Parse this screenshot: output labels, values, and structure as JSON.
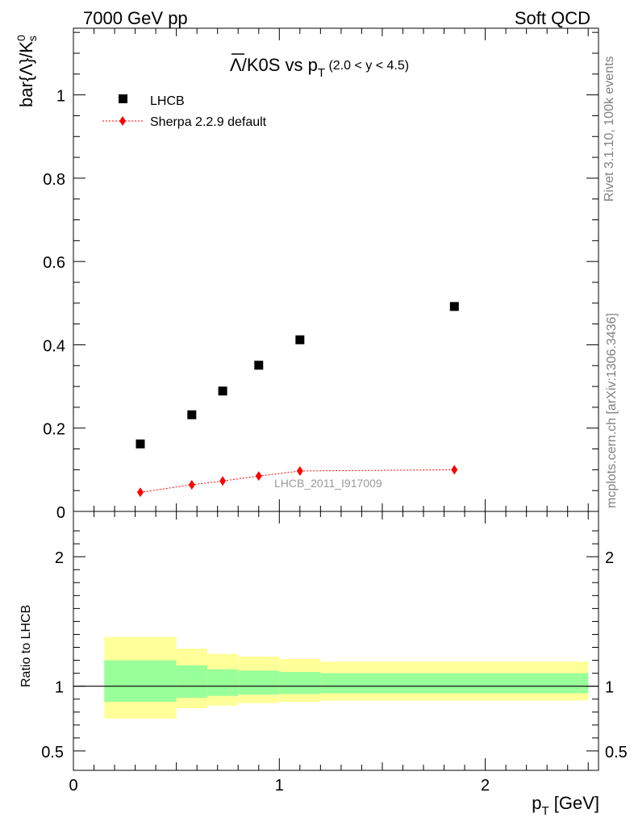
{
  "header": {
    "left": "7000 GeV pp",
    "right": "Soft QCD"
  },
  "title": {
    "symbol": "Λ",
    "rest": "/K0S vs p",
    "sub": "T",
    "range": " (2.0 < y < 4.5)"
  },
  "side_labels": {
    "rivet": "Rivet 3.1.10,  100k events",
    "mcplots": "mcplots.cern.ch [arXiv:1306.3436]"
  },
  "watermark": "LHCB_2011_I917009",
  "main_ylabel": {
    "text": "bar{Λ}/K",
    "sup": "0",
    "sub": "s"
  },
  "ratio_ylabel": "Ratio to LHCB",
  "xlabel": {
    "p": "p",
    "sub": "T",
    "unit": " [GeV]"
  },
  "legend": {
    "data_label": "LHCB",
    "mc_label": "Sherpa 2.2.9 default"
  },
  "colors": {
    "data": "#000000",
    "mc": "#ff0000",
    "band_inner": "#99ff99",
    "band_outer": "#ffff99"
  },
  "chart_data": [
    {
      "type": "scatter",
      "panel": "main",
      "xlim": [
        0,
        2.55
      ],
      "ylim": [
        0,
        1.16
      ],
      "yticks": [
        0,
        0.2,
        0.4,
        0.6,
        0.8,
        1
      ],
      "ytick_labels": [
        "0",
        "0.2",
        "0.4",
        "0.6",
        "0.8",
        "1"
      ],
      "series": [
        {
          "name": "LHCB",
          "x": [
            0.325,
            0.575,
            0.725,
            0.9,
            1.1,
            1.85
          ],
          "y": [
            0.162,
            0.232,
            0.289,
            0.351,
            0.412,
            0.492
          ]
        },
        {
          "name": "Sherpa 2.2.9 default",
          "x": [
            0.325,
            0.575,
            0.725,
            0.9,
            1.1,
            1.85
          ],
          "y": [
            0.046,
            0.064,
            0.073,
            0.085,
            0.097,
            0.1
          ]
        }
      ]
    },
    {
      "type": "line",
      "panel": "ratio",
      "xlim": [
        0,
        2.55
      ],
      "ylim": [
        0.35,
        2.35
      ],
      "yticks": [
        0.5,
        1,
        2
      ],
      "ytick_labels": [
        "0.5",
        "1",
        "2"
      ],
      "xticks": [
        0,
        1,
        2
      ],
      "xtick_labels": [
        "0",
        "1",
        "2"
      ],
      "bands": {
        "edges": [
          0.15,
          0.5,
          0.65,
          0.8,
          1.0,
          1.2,
          2.5
        ],
        "inner_low": [
          0.88,
          0.91,
          0.925,
          0.935,
          0.94,
          0.945
        ],
        "inner_high": [
          1.2,
          1.16,
          1.13,
          1.12,
          1.11,
          1.1
        ],
        "outer_low": [
          0.75,
          0.83,
          0.85,
          0.87,
          0.88,
          0.89
        ],
        "outer_high": [
          1.38,
          1.29,
          1.25,
          1.23,
          1.21,
          1.19
        ]
      },
      "reference_line": 1
    }
  ]
}
